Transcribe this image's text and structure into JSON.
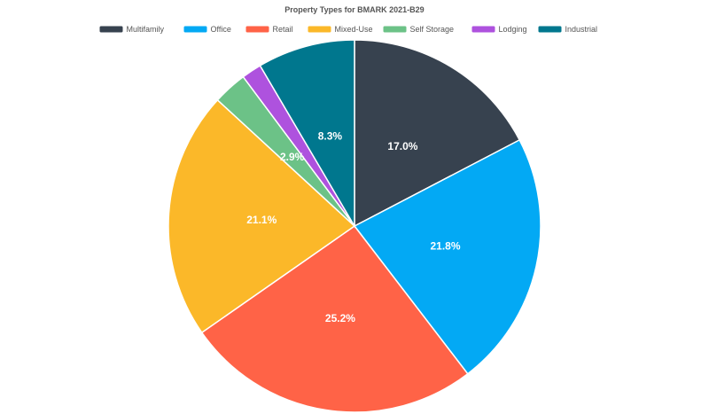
{
  "chart_data": {
    "type": "pie",
    "title": "Property Types for BMARK 2021-B29",
    "legend_position": "top",
    "start_angle_deg": 0,
    "direction": "clockwise",
    "series": [
      {
        "name": "Multifamily",
        "value": 17.0,
        "label": "17.0%",
        "color": "#37424f"
      },
      {
        "name": "Office",
        "value": 21.8,
        "label": "21.8%",
        "color": "#03a9f4"
      },
      {
        "name": "Retail",
        "value": 25.2,
        "label": "25.2%",
        "color": "#ff6347"
      },
      {
        "name": "Mixed-Use",
        "value": 21.1,
        "label": "21.1%",
        "color": "#fbb829"
      },
      {
        "name": "Self Storage",
        "value": 2.9,
        "label": "2.9%",
        "color": "#6cc287"
      },
      {
        "name": "Lodging",
        "value": 1.7,
        "label": "",
        "color": "#ae52de"
      },
      {
        "name": "Industrial",
        "value": 8.3,
        "label": "8.3%",
        "color": "#00778e"
      }
    ]
  }
}
